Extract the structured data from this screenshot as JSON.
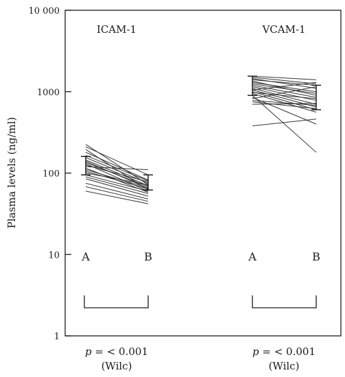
{
  "chart_data": {
    "type": "line",
    "ylabel": "Plasma levels (ng/ml)",
    "yscale": "log",
    "ylim": [
      1,
      10000
    ],
    "yticks": [
      {
        "value": 1,
        "label": "1"
      },
      {
        "value": 10,
        "label": "10"
      },
      {
        "value": 100,
        "label": "100"
      },
      {
        "value": 1000,
        "label": "1000"
      },
      {
        "value": 10000,
        "label": "10 000"
      }
    ],
    "grid": false,
    "panels": [
      {
        "id": "icam",
        "title": "ICAM-1",
        "group_labels": [
          "A",
          "B"
        ],
        "stat_p": "p",
        "stat_rest": " = < 0.001",
        "stat_test": "(Wilc)",
        "pairs": [
          [
            225,
            72
          ],
          [
            210,
            95
          ],
          [
            195,
            62
          ],
          [
            180,
            82
          ],
          [
            165,
            80
          ],
          [
            155,
            75
          ],
          [
            145,
            70
          ],
          [
            140,
            65
          ],
          [
            135,
            68
          ],
          [
            130,
            60
          ],
          [
            125,
            78
          ],
          [
            120,
            110
          ],
          [
            115,
            58
          ],
          [
            110,
            66
          ],
          [
            105,
            64
          ],
          [
            100,
            72
          ],
          [
            95,
            60
          ],
          [
            90,
            56
          ],
          [
            85,
            52
          ],
          [
            75,
            48
          ],
          [
            68,
            45
          ],
          [
            60,
            42
          ]
        ],
        "error_bar_A": {
          "low": 95,
          "high": 160
        },
        "error_bar_B": {
          "low": 62,
          "high": 95
        }
      },
      {
        "id": "vcam",
        "title": "VCAM-1",
        "group_labels": [
          "A",
          "B"
        ],
        "stat_p": "p",
        "stat_rest": " = < 0.001",
        "stat_test": "(Wilc)",
        "pairs": [
          [
            1550,
            1400
          ],
          [
            1500,
            1250
          ],
          [
            1450,
            1100
          ],
          [
            1400,
            1200
          ],
          [
            1350,
            900
          ],
          [
            1300,
            1000
          ],
          [
            1250,
            950
          ],
          [
            1200,
            850
          ],
          [
            1150,
            780
          ],
          [
            1100,
            700
          ],
          [
            1050,
            650
          ],
          [
            1000,
            600
          ],
          [
            950,
            560
          ],
          [
            900,
            180
          ],
          [
            850,
            400
          ],
          [
            820,
            1150
          ],
          [
            780,
            680
          ],
          [
            750,
            620
          ],
          [
            700,
            720
          ],
          [
            380,
            460
          ],
          [
            1050,
            1300
          ],
          [
            980,
            820
          ]
        ],
        "error_bar_A": {
          "low": 900,
          "high": 1550
        },
        "error_bar_B": {
          "low": 600,
          "high": 1200
        }
      }
    ]
  }
}
